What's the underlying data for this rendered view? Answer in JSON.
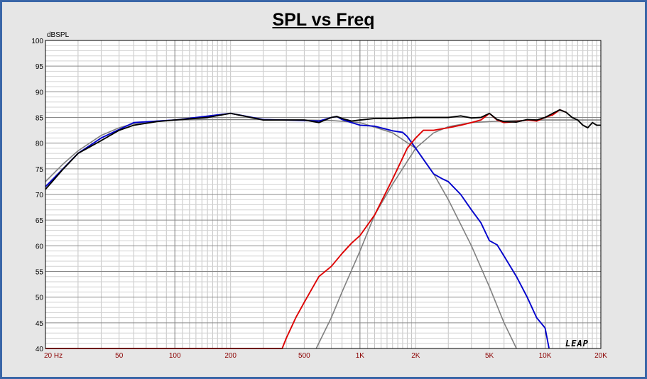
{
  "chart_data": {
    "type": "line",
    "title": "SPL vs Freq",
    "ylabel": "dBSPL",
    "xlabel": "",
    "xscale": "log",
    "xlim": [
      20,
      20000
    ],
    "ylim": [
      40,
      100
    ],
    "grid": true,
    "yticks": [
      {
        "value": 100,
        "label": "100"
      },
      {
        "value": 95,
        "label": "95"
      },
      {
        "value": 90,
        "label": "90"
      },
      {
        "value": 85,
        "label": "85"
      },
      {
        "value": 80,
        "label": "80"
      },
      {
        "value": 75,
        "label": "75"
      },
      {
        "value": 70,
        "label": "70"
      },
      {
        "value": 65,
        "label": "65"
      },
      {
        "value": 60,
        "label": "60"
      },
      {
        "value": 55,
        "label": "55"
      },
      {
        "value": 50,
        "label": "50"
      },
      {
        "value": 45,
        "label": "45"
      },
      {
        "value": 40,
        "label": "40"
      }
    ],
    "xticks": [
      {
        "value": 20,
        "label": "20  Hz"
      },
      {
        "value": 50,
        "label": "50"
      },
      {
        "value": 100,
        "label": "100"
      },
      {
        "value": 200,
        "label": "200"
      },
      {
        "value": 500,
        "label": "500"
      },
      {
        "value": 1000,
        "label": "1K"
      },
      {
        "value": 2000,
        "label": "2K"
      },
      {
        "value": 5000,
        "label": "5K"
      },
      {
        "value": 10000,
        "label": "10K"
      },
      {
        "value": 20000,
        "label": "20K"
      }
    ],
    "series": [
      {
        "color": "#808080",
        "x": [
          20,
          25,
          30,
          40,
          50,
          60,
          80,
          100,
          150,
          200,
          300,
          500,
          700,
          1000,
          1500,
          2000,
          2500,
          3000,
          4000,
          5000,
          6000,
          7000
        ],
        "y": [
          72.5,
          76,
          78.5,
          81.5,
          83,
          83.8,
          84.3,
          84.5,
          84.6,
          84.6,
          84.6,
          84.5,
          84.4,
          84,
          82,
          79,
          74,
          69,
          60,
          52,
          45,
          40
        ]
      },
      {
        "color": "#808080",
        "x": [
          580,
          700,
          800,
          1000,
          1200,
          1500,
          2000,
          2500,
          3000,
          4000,
          5000,
          7000,
          10000,
          15000,
          20000
        ],
        "y": [
          40,
          46,
          51,
          59,
          66,
          72,
          79,
          82,
          83.2,
          84,
          84.2,
          84.4,
          84.5,
          84.5,
          84.5
        ]
      },
      {
        "color": "#0000cc",
        "x": [
          20,
          30,
          40,
          60,
          100,
          200,
          300,
          500,
          600,
          700,
          750,
          800,
          900,
          1000,
          1200,
          1500,
          1700,
          1800,
          2000,
          2500,
          2800,
          3000,
          3500,
          4000,
          4500,
          5000,
          5500,
          6000,
          7000,
          8000,
          9000,
          10000,
          10500
        ],
        "y": [
          71.5,
          78,
          81,
          84,
          84.5,
          85.8,
          84.6,
          84.4,
          84.3,
          85,
          85.2,
          84.6,
          84,
          83.5,
          83.3,
          82.4,
          82.1,
          81.3,
          79,
          74,
          73,
          72.5,
          70,
          67,
          64.5,
          61,
          60.2,
          58,
          54,
          50,
          46,
          44,
          40
        ]
      },
      {
        "color": "#dd0000",
        "x": [
          20,
          380,
          400,
          450,
          500,
          600,
          700,
          800,
          900,
          1000,
          1200,
          1500,
          1800,
          2000,
          2200,
          2500,
          3000,
          3500,
          4000,
          4500,
          5000,
          5500,
          6000,
          7000,
          8000,
          9000,
          10000,
          11000,
          12000,
          13000
        ],
        "y": [
          40,
          40,
          42,
          46,
          49,
          54,
          56,
          58.5,
          60.5,
          62,
          66,
          73,
          79,
          81,
          82.5,
          82.5,
          83,
          83.5,
          84,
          84.5,
          85.8,
          84.5,
          84,
          84.2,
          84.5,
          84.3,
          85,
          85.5,
          86.5,
          86
        ]
      },
      {
        "color": "#000000",
        "x": [
          20,
          25,
          30,
          40,
          50,
          60,
          80,
          100,
          150,
          200,
          300,
          500,
          600,
          700,
          750,
          800,
          900,
          1000,
          1200,
          1500,
          2000,
          2500,
          3000,
          3500,
          4000,
          4500,
          5000,
          5500,
          6000,
          7000,
          8000,
          9000,
          10000,
          11000,
          12000,
          13000,
          14000,
          15000,
          16000,
          17000,
          18000,
          19000,
          20000
        ],
        "y": [
          71,
          75,
          78,
          80.5,
          82.5,
          83.5,
          84.2,
          84.5,
          85,
          85.8,
          84.5,
          84.5,
          84,
          85,
          85.2,
          84.8,
          84.3,
          84.5,
          84.8,
          84.8,
          85,
          85,
          85,
          85.3,
          84.9,
          85,
          85.8,
          84.6,
          84.2,
          84.1,
          84.6,
          84.5,
          85,
          85.8,
          86.5,
          86,
          85,
          84.5,
          83.5,
          83,
          84,
          83.5,
          83.5
        ]
      }
    ]
  },
  "logo": "LEAP"
}
